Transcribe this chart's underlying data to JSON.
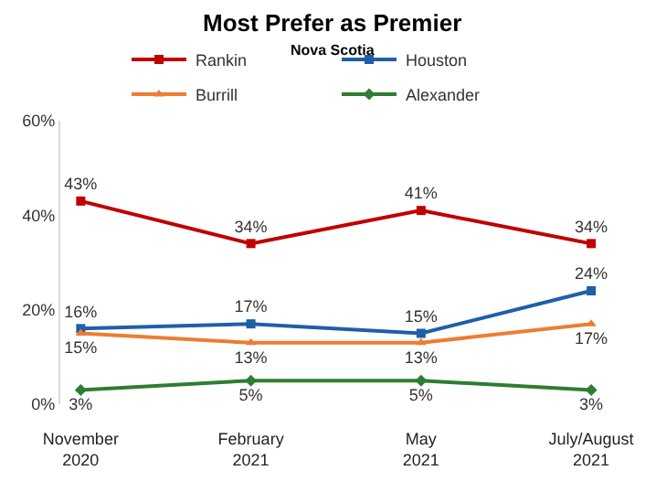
{
  "chart_data": {
    "type": "line",
    "title": "Most Prefer as Premier",
    "subtitle": "Nova Scotia",
    "categories": [
      "November 2020",
      "February 2021",
      "May 2021",
      "July/August 2021"
    ],
    "series": [
      {
        "name": "Rankin",
        "color": "#c00000",
        "values": [
          43,
          34,
          41,
          34
        ],
        "value_labels": [
          "43%",
          "34%",
          "41%",
          "34%"
        ]
      },
      {
        "name": "Houston",
        "color": "#1f5fa8",
        "values": [
          16,
          17,
          15,
          24
        ],
        "value_labels": [
          "16%",
          "17%",
          "15%",
          "24%"
        ]
      },
      {
        "name": "Burrill",
        "color": "#ed7d31",
        "values": [
          15,
          13,
          13,
          17
        ],
        "marker": "triangle",
        "value_labels": [
          "15%",
          "13%",
          "13%",
          "17%"
        ]
      },
      {
        "name": "Alexander",
        "color": "#2e7d32",
        "values": [
          3,
          5,
          5,
          3
        ],
        "marker": "diamond",
        "value_labels": [
          "3%",
          "5%",
          "5%",
          "3%"
        ]
      }
    ],
    "ylim": [
      0,
      60
    ],
    "yticks": [
      {
        "value": 0,
        "label": "0%"
      },
      {
        "value": 20,
        "label": "20%"
      },
      {
        "value": 40,
        "label": "40%"
      },
      {
        "value": 60,
        "label": "60%"
      }
    ],
    "legend": "top",
    "marker": "square",
    "line_style": "solid"
  }
}
